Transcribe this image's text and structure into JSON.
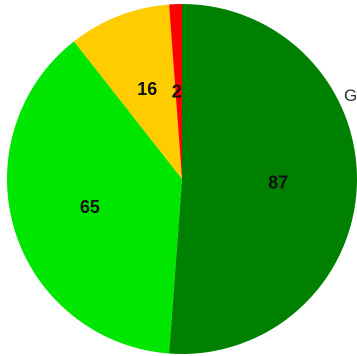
{
  "chart_data": {
    "type": "pie",
    "start_angle_deg": 0,
    "direction": "clockwise",
    "slices": [
      {
        "label": "87",
        "value": 87,
        "color": "#008000"
      },
      {
        "label": "65",
        "value": 65,
        "color": "#00e600"
      },
      {
        "label": "16",
        "value": 16,
        "color": "#ffcc00"
      },
      {
        "label": "2",
        "value": 2,
        "color": "#ff0000"
      }
    ],
    "legend": {
      "visible_text": "G"
    }
  }
}
